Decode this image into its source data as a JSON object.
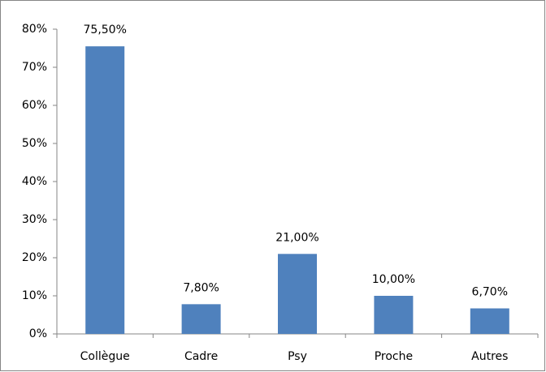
{
  "chart_data": {
    "type": "bar",
    "categories": [
      "Collègue",
      "Cadre",
      "Psy",
      "Proche",
      "Autres"
    ],
    "values": [
      75.5,
      7.8,
      21,
      10,
      6.7
    ],
    "value_labels": [
      "75,50%",
      "7,80%",
      "21,00%",
      "10,00%",
      "6,70%"
    ],
    "color": "#4f81bd",
    "ylim": [
      0,
      80
    ],
    "yticks": [
      {
        "value": 0,
        "label": "0%"
      },
      {
        "value": 10,
        "label": "10%"
      },
      {
        "value": 20,
        "label": "20%"
      },
      {
        "value": 30,
        "label": "30%"
      },
      {
        "value": 40,
        "label": "40%"
      },
      {
        "value": 50,
        "label": "50%"
      },
      {
        "value": 60,
        "label": "60%"
      },
      {
        "value": 70,
        "label": "70%"
      },
      {
        "value": 80,
        "label": "80%"
      }
    ],
    "grid": false
  }
}
